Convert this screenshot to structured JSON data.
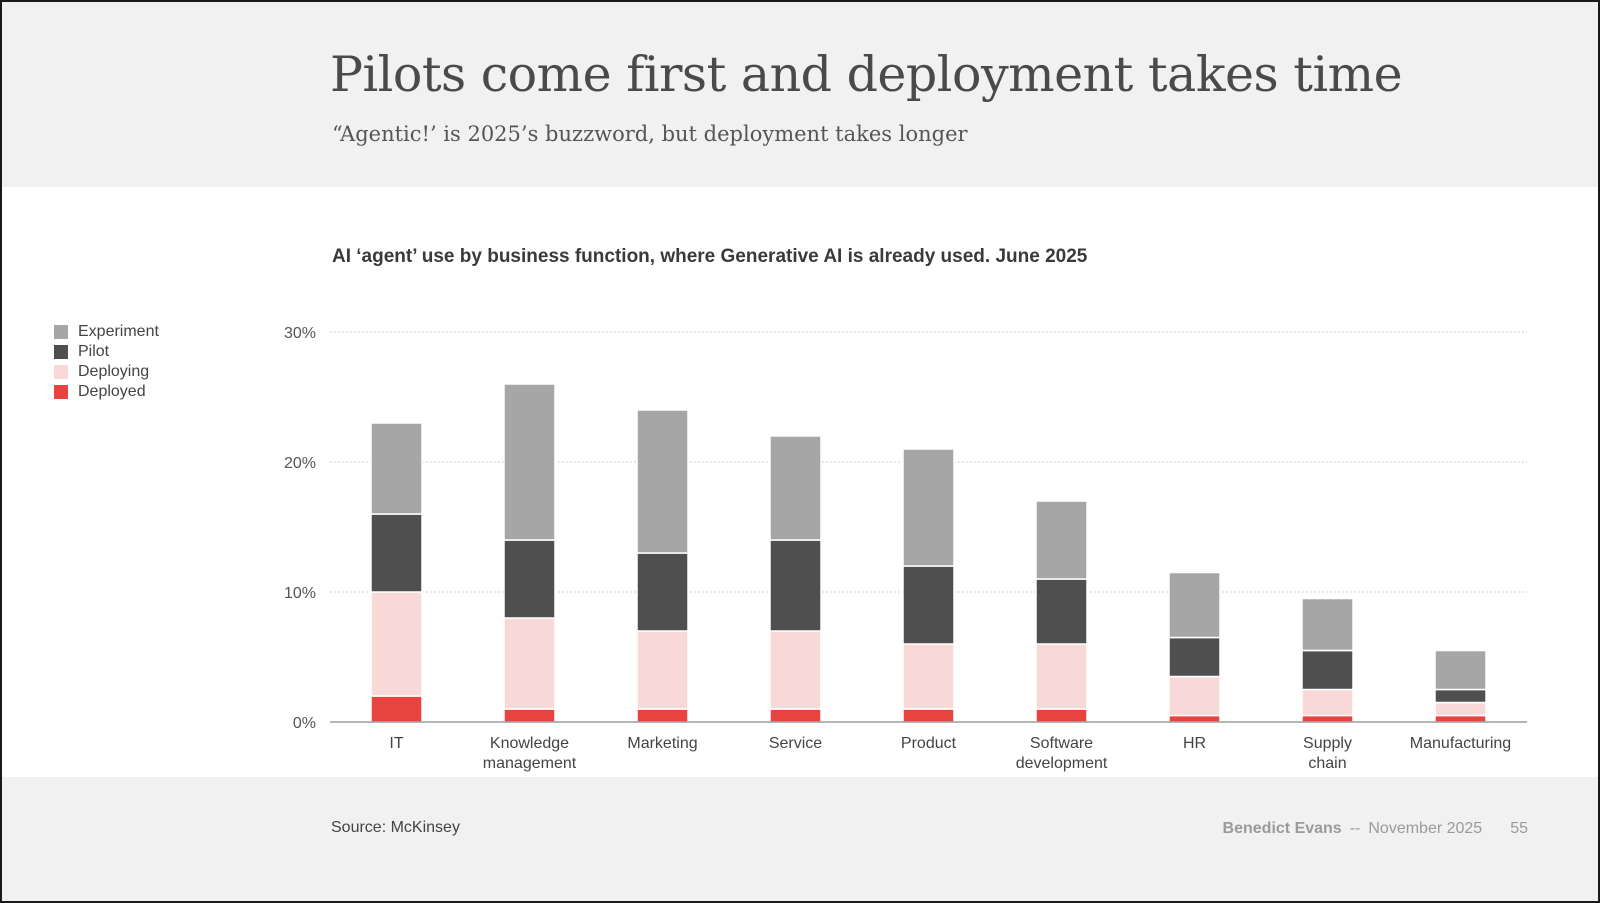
{
  "header": {
    "title": "Pilots come first and deployment takes time",
    "subtitle": "“Agentic!’ is 2025’s buzzword, but deployment takes longer"
  },
  "chart_title": "AI ‘agent’ use by business function, where Generative AI is already used. June 2025",
  "legend": [
    {
      "label": "Experiment",
      "color": "#a6a6a6"
    },
    {
      "label": "Pilot",
      "color": "#4f4f4f"
    },
    {
      "label": "Deploying",
      "color": "#f9d9d8"
    },
    {
      "label": "Deployed",
      "color": "#e8433f"
    }
  ],
  "footer": {
    "source": "Source: McKinsey",
    "author": "Benedict Evans",
    "separator": "--",
    "date": "November 2025",
    "page": "55"
  },
  "chart_data": {
    "type": "bar",
    "stacked": true,
    "title": "AI ‘agent’ use by business function, where Generative AI is already used. June 2025",
    "categories": [
      [
        "IT"
      ],
      [
        "Knowledge",
        "management"
      ],
      [
        "Marketing"
      ],
      [
        "Service"
      ],
      [
        "Product"
      ],
      [
        "Software",
        "development"
      ],
      [
        "HR"
      ],
      [
        "Supply",
        "chain"
      ],
      [
        "Manufacturing"
      ]
    ],
    "series": [
      {
        "name": "Deployed",
        "color": "#e8433f",
        "values": [
          2,
          1,
          1,
          1,
          1,
          1,
          0.5,
          0.5,
          0.5
        ]
      },
      {
        "name": "Deploying",
        "color": "#f9d9d8",
        "values": [
          8,
          7,
          6,
          6,
          5,
          5,
          3,
          2,
          1
        ]
      },
      {
        "name": "Pilot",
        "color": "#4f4f4f",
        "values": [
          6,
          6,
          6,
          7,
          6,
          5,
          3,
          3,
          1
        ]
      },
      {
        "name": "Experiment",
        "color": "#a6a6a6",
        "values": [
          7,
          12,
          11,
          8,
          9,
          6,
          5,
          4,
          3
        ]
      }
    ],
    "yticks": [
      0,
      10,
      20,
      30
    ],
    "ytick_labels": [
      "0%",
      "10%",
      "20%",
      "30%"
    ],
    "ylim": [
      0,
      30
    ],
    "grid": true,
    "legend_position": "left"
  }
}
